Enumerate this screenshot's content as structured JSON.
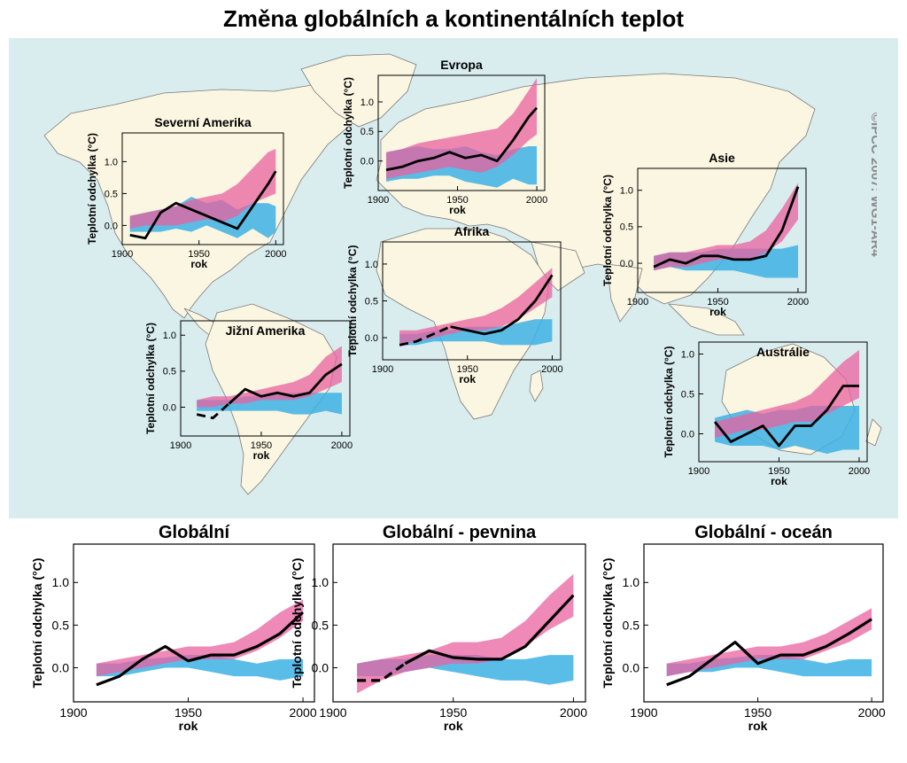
{
  "title": "Změna globálních a kontinentálních teplot",
  "credit": "©IPCC 2007: WG1-AR4",
  "colors": {
    "map_background": "#d9ecee",
    "land": "#fbf6e2",
    "natural_band": "#3db1e4",
    "natural_anthropogenic_band": "#e9619f",
    "overlap_band": "#8a5bb0",
    "observed": "#000000"
  },
  "chart_data": [
    {
      "id": "north_america",
      "type": "line",
      "title": "Severní Amerika",
      "xlabel": "rok",
      "ylabel": "Teplotní odchylka (°C)",
      "xlim": [
        1900,
        2005
      ],
      "ylim": [
        -0.3,
        1.45
      ],
      "xticks": [
        "1900",
        "1950",
        "2000"
      ],
      "yticks": [
        "0.0",
        "0.5",
        "1.0"
      ],
      "x": [
        1905,
        1915,
        1925,
        1935,
        1945,
        1955,
        1965,
        1975,
        1985,
        1995,
        2000
      ],
      "observed": [
        -0.15,
        -0.2,
        0.2,
        0.35,
        0.25,
        0.15,
        0.05,
        -0.05,
        0.3,
        0.65,
        0.85
      ],
      "observed_dashed_until": null,
      "natural_band": {
        "low": [
          -0.1,
          -0.1,
          -0.1,
          -0.05,
          -0.1,
          0.0,
          -0.1,
          -0.2,
          -0.05,
          -0.2,
          -0.1
        ],
        "high": [
          0.15,
          0.2,
          0.25,
          0.3,
          0.45,
          0.35,
          0.4,
          0.25,
          0.35,
          0.35,
          0.3
        ]
      },
      "combined_band": {
        "low": [
          -0.05,
          0.0,
          0.0,
          0.0,
          0.05,
          0.1,
          0.05,
          0.15,
          0.35,
          0.45,
          0.5
        ],
        "high": [
          0.15,
          0.2,
          0.25,
          0.3,
          0.4,
          0.45,
          0.5,
          0.65,
          0.9,
          1.15,
          1.2
        ]
      }
    },
    {
      "id": "europe",
      "type": "line",
      "title": "Evropa",
      "xlabel": "rok",
      "ylabel": "Teplotní odchylka (°C)",
      "xlim": [
        1900,
        2005
      ],
      "ylim": [
        -0.5,
        1.45
      ],
      "xticks": [
        "1900",
        "1950",
        "2000"
      ],
      "yticks": [
        "0.0",
        "0.5",
        "1.0"
      ],
      "x": [
        1905,
        1915,
        1925,
        1935,
        1945,
        1955,
        1965,
        1975,
        1985,
        1995,
        2000
      ],
      "observed": [
        -0.15,
        -0.1,
        0.0,
        0.05,
        0.15,
        0.05,
        0.1,
        0.0,
        0.35,
        0.75,
        0.9
      ],
      "observed_dashed_until": null,
      "natural_band": {
        "low": [
          -0.35,
          -0.3,
          -0.3,
          -0.25,
          -0.25,
          -0.35,
          -0.4,
          -0.45,
          -0.3,
          -0.4,
          -0.4
        ],
        "high": [
          0.15,
          0.2,
          0.25,
          0.2,
          0.2,
          0.25,
          0.15,
          0.1,
          0.2,
          0.25,
          0.25
        ]
      },
      "combined_band": {
        "low": [
          -0.3,
          -0.25,
          -0.2,
          -0.15,
          -0.1,
          -0.15,
          -0.2,
          -0.1,
          0.1,
          0.35,
          0.45
        ],
        "high": [
          0.15,
          0.2,
          0.3,
          0.35,
          0.4,
          0.45,
          0.5,
          0.55,
          0.8,
          1.2,
          1.4
        ]
      }
    },
    {
      "id": "asia",
      "type": "line",
      "title": "Asie",
      "xlabel": "rok",
      "ylabel": "Teplotní odchylka (°C)",
      "xlim": [
        1900,
        2005
      ],
      "ylim": [
        -0.4,
        1.3
      ],
      "xticks": [
        "1900",
        "1950",
        "2000"
      ],
      "yticks": [
        "0.0",
        "0.5",
        "1.0"
      ],
      "x": [
        1910,
        1920,
        1930,
        1940,
        1950,
        1960,
        1970,
        1980,
        1990,
        2000
      ],
      "observed": [
        -0.05,
        0.05,
        0.0,
        0.1,
        0.1,
        0.05,
        0.05,
        0.1,
        0.45,
        1.05
      ],
      "observed_dashed_until": null,
      "natural_band": {
        "low": [
          -0.1,
          -0.05,
          -0.1,
          -0.1,
          -0.1,
          -0.1,
          -0.15,
          -0.2,
          -0.2,
          -0.2
        ],
        "high": [
          0.1,
          0.15,
          0.15,
          0.15,
          0.2,
          0.2,
          0.2,
          0.2,
          0.2,
          0.25
        ]
      },
      "combined_band": {
        "low": [
          -0.1,
          -0.05,
          -0.05,
          0.0,
          0.05,
          0.05,
          0.05,
          0.15,
          0.3,
          0.6
        ],
        "high": [
          0.1,
          0.15,
          0.15,
          0.2,
          0.25,
          0.25,
          0.3,
          0.45,
          0.75,
          1.1
        ]
      }
    },
    {
      "id": "africa",
      "type": "line",
      "title": "Afrika",
      "xlabel": "rok",
      "ylabel": "Teplotní odchylka (°C)",
      "xlim": [
        1900,
        2005
      ],
      "ylim": [
        -0.3,
        1.3
      ],
      "xticks": [
        "1900",
        "1950",
        "2000"
      ],
      "yticks": [
        "0.0",
        "0.5",
        "1.0"
      ],
      "x": [
        1910,
        1920,
        1930,
        1940,
        1950,
        1960,
        1970,
        1980,
        1990,
        2000
      ],
      "observed": [
        -0.1,
        -0.05,
        0.05,
        0.15,
        0.1,
        0.05,
        0.1,
        0.25,
        0.5,
        0.85
      ],
      "observed_dashed_until": 1940,
      "natural_band": {
        "low": [
          -0.1,
          -0.1,
          -0.05,
          -0.05,
          -0.05,
          -0.05,
          -0.1,
          -0.1,
          -0.1,
          -0.05
        ],
        "high": [
          0.05,
          0.05,
          0.1,
          0.1,
          0.15,
          0.15,
          0.15,
          0.2,
          0.25,
          0.25
        ]
      },
      "combined_band": {
        "low": [
          -0.1,
          -0.05,
          0.0,
          0.05,
          0.1,
          0.1,
          0.15,
          0.25,
          0.4,
          0.55
        ],
        "high": [
          0.1,
          0.1,
          0.15,
          0.2,
          0.25,
          0.3,
          0.4,
          0.55,
          0.75,
          0.95
        ]
      }
    },
    {
      "id": "south_america",
      "type": "line",
      "title": "Jižní Amerika",
      "xlabel": "rok",
      "ylabel": "Teplotní odchylka (°C)",
      "xlim": [
        1900,
        2005
      ],
      "ylim": [
        -0.4,
        1.2
      ],
      "xticks": [
        "1900",
        "1950",
        "2000"
      ],
      "yticks": [
        "0.0",
        "0.5",
        "1.0"
      ],
      "x": [
        1910,
        1920,
        1930,
        1940,
        1950,
        1960,
        1970,
        1980,
        1990,
        2000
      ],
      "observed": [
        -0.1,
        -0.15,
        0.05,
        0.25,
        0.15,
        0.2,
        0.15,
        0.2,
        0.45,
        0.6
      ],
      "observed_dashed_until": 1930,
      "natural_band": {
        "low": [
          -0.05,
          -0.05,
          -0.05,
          -0.05,
          -0.05,
          -0.05,
          -0.1,
          -0.1,
          -0.05,
          -0.1
        ],
        "high": [
          0.1,
          0.1,
          0.1,
          0.15,
          0.15,
          0.2,
          0.2,
          0.2,
          0.2,
          0.2
        ]
      },
      "combined_band": {
        "low": [
          0.0,
          0.0,
          0.05,
          0.05,
          0.1,
          0.1,
          0.1,
          0.15,
          0.25,
          0.35
        ],
        "high": [
          0.1,
          0.15,
          0.15,
          0.2,
          0.25,
          0.3,
          0.35,
          0.45,
          0.7,
          0.85
        ]
      }
    },
    {
      "id": "australia",
      "type": "line",
      "title": "Austrálie",
      "xlabel": "rok",
      "ylabel": "Teplotní odchylka (°C)",
      "xlim": [
        1900,
        2005
      ],
      "ylim": [
        -0.35,
        1.15
      ],
      "xticks": [
        "1900",
        "1950",
        "2000"
      ],
      "yticks": [
        "0.0",
        "0.5",
        "1.0"
      ],
      "x": [
        1910,
        1920,
        1930,
        1940,
        1950,
        1960,
        1970,
        1980,
        1990,
        2000
      ],
      "observed": [
        0.15,
        -0.1,
        0.0,
        0.1,
        -0.15,
        0.1,
        0.1,
        0.3,
        0.6,
        0.6
      ],
      "observed_dashed_until": null,
      "natural_band": {
        "low": [
          -0.1,
          -0.15,
          -0.15,
          -0.15,
          -0.2,
          -0.15,
          -0.2,
          -0.25,
          -0.2,
          -0.2
        ],
        "high": [
          0.2,
          0.25,
          0.3,
          0.25,
          0.3,
          0.3,
          0.35,
          0.35,
          0.35,
          0.35
        ]
      },
      "combined_band": {
        "low": [
          -0.05,
          0.0,
          0.05,
          0.05,
          0.1,
          0.15,
          0.15,
          0.25,
          0.35,
          0.45
        ],
        "high": [
          0.15,
          0.2,
          0.25,
          0.3,
          0.35,
          0.4,
          0.5,
          0.7,
          0.9,
          1.05
        ]
      }
    },
    {
      "id": "global",
      "type": "line",
      "title": "Globální",
      "xlabel": "rok",
      "ylabel": "Teplotní odchylka (°C)",
      "xlim": [
        1900,
        2005
      ],
      "ylim": [
        -0.4,
        1.45
      ],
      "xticks": [
        "1900",
        "1950",
        "2000"
      ],
      "yticks": [
        "0.0",
        "0.5",
        "1.0"
      ],
      "x": [
        1910,
        1920,
        1930,
        1940,
        1950,
        1960,
        1970,
        1980,
        1990,
        2000
      ],
      "observed": [
        -0.2,
        -0.1,
        0.1,
        0.25,
        0.08,
        0.15,
        0.15,
        0.25,
        0.4,
        0.65
      ],
      "observed_dashed_until": null,
      "natural_band": {
        "low": [
          -0.1,
          -0.1,
          -0.05,
          0.0,
          0.0,
          -0.05,
          -0.1,
          -0.1,
          -0.15,
          -0.1
        ],
        "high": [
          0.05,
          0.05,
          0.1,
          0.12,
          0.15,
          0.15,
          0.1,
          0.05,
          0.1,
          0.1
        ]
      },
      "combined_band": {
        "low": [
          -0.1,
          -0.05,
          0.0,
          0.05,
          0.1,
          0.1,
          0.1,
          0.2,
          0.35,
          0.55
        ],
        "high": [
          0.05,
          0.1,
          0.15,
          0.2,
          0.25,
          0.25,
          0.3,
          0.45,
          0.65,
          0.8
        ]
      }
    },
    {
      "id": "global_land",
      "type": "line",
      "title": "Globální - pevnina",
      "xlabel": "rok",
      "ylabel": "Teplotní odchylka (°C)",
      "xlim": [
        1900,
        2005
      ],
      "ylim": [
        -0.4,
        1.45
      ],
      "xticks": [
        "1900",
        "1950",
        "2000"
      ],
      "yticks": [
        "0.0",
        "0.5",
        "1.0"
      ],
      "x": [
        1910,
        1920,
        1930,
        1940,
        1950,
        1960,
        1970,
        1980,
        1990,
        2000
      ],
      "observed": [
        -0.15,
        -0.15,
        0.05,
        0.2,
        0.12,
        0.1,
        0.1,
        0.25,
        0.55,
        0.85
      ],
      "observed_dashed_until": 1925,
      "natural_band": {
        "low": [
          -0.1,
          -0.1,
          -0.05,
          0.0,
          -0.05,
          -0.1,
          -0.15,
          -0.15,
          -0.2,
          -0.15
        ],
        "high": [
          0.05,
          0.1,
          0.1,
          0.15,
          0.15,
          0.15,
          0.1,
          0.1,
          0.15,
          0.15
        ]
      },
      "combined_band": {
        "low": [
          -0.3,
          -0.15,
          -0.05,
          0.0,
          0.05,
          0.05,
          0.1,
          0.25,
          0.45,
          0.6
        ],
        "high": [
          0.05,
          0.1,
          0.15,
          0.2,
          0.3,
          0.3,
          0.35,
          0.55,
          0.85,
          1.1
        ]
      }
    },
    {
      "id": "global_ocean",
      "type": "line",
      "title": "Globální - oceán",
      "xlabel": "rok",
      "ylabel": "Teplotní odchylka (°C)",
      "xlim": [
        1900,
        2005
      ],
      "ylim": [
        -0.4,
        1.45
      ],
      "xticks": [
        "1900",
        "1950",
        "2000"
      ],
      "yticks": [
        "0.0",
        "0.5",
        "1.0"
      ],
      "x": [
        1910,
        1920,
        1930,
        1940,
        1950,
        1960,
        1970,
        1980,
        1990,
        2000
      ],
      "observed": [
        -0.2,
        -0.1,
        0.1,
        0.3,
        0.05,
        0.15,
        0.15,
        0.25,
        0.4,
        0.57
      ],
      "observed_dashed_until": null,
      "natural_band": {
        "low": [
          -0.1,
          -0.05,
          -0.05,
          0.0,
          0.0,
          -0.05,
          -0.1,
          -0.1,
          -0.1,
          -0.1
        ],
        "high": [
          0.05,
          0.05,
          0.1,
          0.12,
          0.15,
          0.15,
          0.1,
          0.05,
          0.1,
          0.1
        ]
      },
      "combined_band": {
        "low": [
          -0.1,
          -0.05,
          0.0,
          0.05,
          0.1,
          0.1,
          0.1,
          0.2,
          0.3,
          0.45
        ],
        "high": [
          0.05,
          0.1,
          0.15,
          0.2,
          0.25,
          0.25,
          0.3,
          0.4,
          0.55,
          0.7
        ]
      }
    }
  ]
}
